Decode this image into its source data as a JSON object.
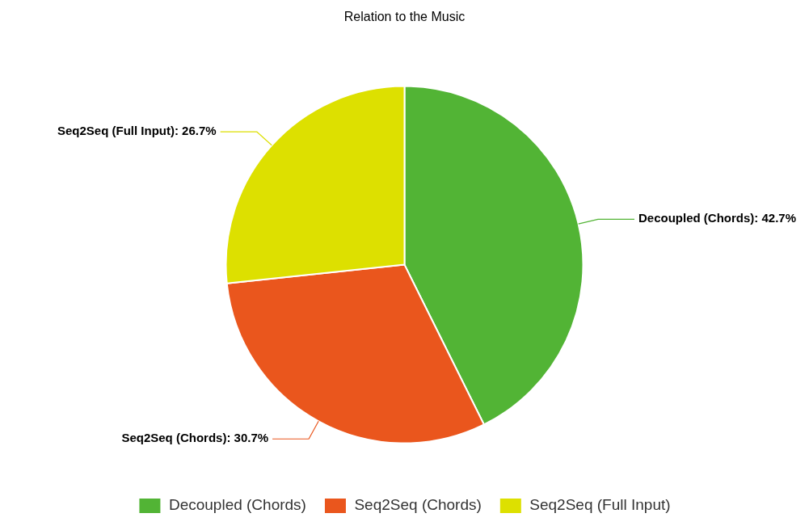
{
  "chart_data": {
    "type": "pie",
    "title": "Relation to the Music",
    "categories": [
      "Decoupled (Chords)",
      "Seq2Seq (Chords)",
      "Seq2Seq (Full Input)"
    ],
    "values": [
      42.7,
      30.7,
      26.7
    ],
    "colors": [
      "#52b435",
      "#ea561d",
      "#dde000"
    ],
    "value_labels": [
      "Decoupled (Chords): 42.7%",
      "Seq2Seq (Chords): 30.7%",
      "Seq2Seq (Full Input): 26.7%"
    ],
    "legend": "bottom"
  }
}
